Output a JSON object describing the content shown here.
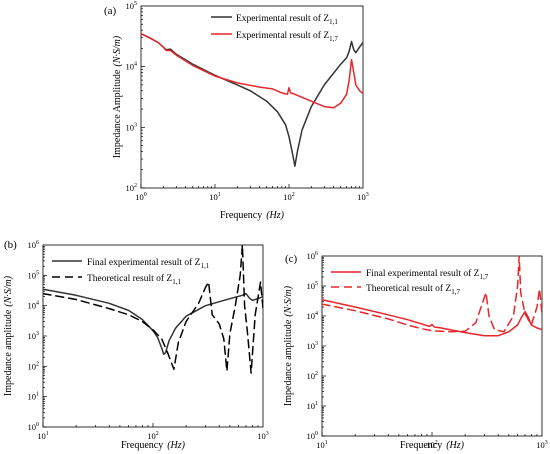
{
  "colors": {
    "black": "#333333",
    "red": "#e8262a",
    "axis": "#000000"
  },
  "chart_data": [
    {
      "type": "line",
      "panel_label": "(a)",
      "xlabel": "Frequency",
      "xlabel_unit": "(Hz)",
      "ylabel": "Impedance Amplitude",
      "ylabel_unit": "(N·S/m)",
      "xscale": "log",
      "yscale": "log",
      "xlim": [
        1,
        1000
      ],
      "ylim": [
        100,
        100000
      ],
      "x_ticks": [
        {
          "v": 1,
          "m": "10",
          "e": "0"
        },
        {
          "v": 10,
          "m": "10",
          "e": "1"
        },
        {
          "v": 100,
          "m": "10",
          "e": "2"
        },
        {
          "v": 1000,
          "m": "10",
          "e": "3"
        }
      ],
      "y_ticks": [
        {
          "v": 100,
          "m": "10",
          "e": "2"
        },
        {
          "v": 1000,
          "m": "10",
          "e": "3"
        },
        {
          "v": 10000,
          "m": "10",
          "e": "4"
        },
        {
          "v": 100000,
          "m": "10",
          "e": "5"
        }
      ],
      "legend_position": "top-right",
      "series": [
        {
          "name": "Experimental result of Z",
          "sub": "1,1",
          "color": "#333333",
          "dash": "",
          "points": [
            [
              1,
              35000
            ],
            [
              1.3,
              30000
            ],
            [
              1.7,
              25000
            ],
            [
              2,
              21000
            ],
            [
              2.2,
              19000
            ],
            [
              2.5,
              19500
            ],
            [
              3,
              16000
            ],
            [
              5,
              11000
            ],
            [
              10,
              7200
            ],
            [
              20,
              5000
            ],
            [
              30,
              4000
            ],
            [
              50,
              2700
            ],
            [
              70,
              1800
            ],
            [
              90,
              1100
            ],
            [
              100,
              700
            ],
            [
              110,
              400
            ],
            [
              120,
              230
            ],
            [
              130,
              400
            ],
            [
              150,
              900
            ],
            [
              200,
              2200
            ],
            [
              300,
              5000
            ],
            [
              500,
              11000
            ],
            [
              600,
              14000
            ],
            [
              650,
              18000
            ],
            [
              700,
              26000
            ],
            [
              750,
              19000
            ],
            [
              800,
              17000
            ],
            [
              900,
              21000
            ],
            [
              1000,
              25000
            ]
          ]
        },
        {
          "name": "Experimental result of Z",
          "sub": "1,7",
          "color": "#e8262a",
          "dash": "",
          "points": [
            [
              1,
              35000
            ],
            [
              1.3,
              30000
            ],
            [
              1.7,
              25000
            ],
            [
              2,
              21000
            ],
            [
              2.2,
              18500
            ],
            [
              2.5,
              18500
            ],
            [
              3,
              15500
            ],
            [
              5,
              10500
            ],
            [
              10,
              7000
            ],
            [
              20,
              5400
            ],
            [
              40,
              4600
            ],
            [
              60,
              4300
            ],
            [
              80,
              3700
            ],
            [
              95,
              3500
            ],
            [
              100,
              4500
            ],
            [
              105,
              3700
            ],
            [
              120,
              3500
            ],
            [
              200,
              2700
            ],
            [
              300,
              2200
            ],
            [
              400,
              2100
            ],
            [
              500,
              2500
            ],
            [
              600,
              3500
            ],
            [
              650,
              6000
            ],
            [
              700,
              13000
            ],
            [
              750,
              8000
            ],
            [
              800,
              5000
            ],
            [
              900,
              4000
            ],
            [
              1000,
              3600
            ]
          ]
        }
      ]
    },
    {
      "type": "line",
      "panel_label": "(b)",
      "xlabel": "Frequency",
      "xlabel_unit": "(Hz)",
      "ylabel": "Impedance amplitude",
      "ylabel_unit": "(N·S/m)",
      "xscale": "log",
      "yscale": "log",
      "xlim": [
        10,
        1000
      ],
      "ylim": [
        1,
        1000000
      ],
      "x_ticks": [
        {
          "v": 10,
          "m": "10",
          "e": "1"
        },
        {
          "v": 100,
          "m": "10",
          "e": "2"
        },
        {
          "v": 1000,
          "m": "10",
          "e": "3"
        }
      ],
      "y_ticks": [
        {
          "v": 1,
          "m": "10",
          "e": "0"
        },
        {
          "v": 10,
          "m": "10",
          "e": "1"
        },
        {
          "v": 100,
          "m": "10",
          "e": "2"
        },
        {
          "v": 1000,
          "m": "10",
          "e": "3"
        },
        {
          "v": 10000,
          "m": "10",
          "e": "4"
        },
        {
          "v": 100000,
          "m": "10",
          "e": "5"
        },
        {
          "v": 1000000,
          "m": "10",
          "e": "6"
        }
      ],
      "legend_position": "top-left",
      "series": [
        {
          "name": "Final experimental result of Z",
          "sub": "1,1",
          "color": "#333333",
          "dash": "",
          "points": [
            [
              10,
              35000
            ],
            [
              20,
              22000
            ],
            [
              40,
              12000
            ],
            [
              60,
              7000
            ],
            [
              80,
              3500
            ],
            [
              100,
              1500
            ],
            [
              110,
              900
            ],
            [
              120,
              400
            ],
            [
              125,
              250
            ],
            [
              130,
              280
            ],
            [
              140,
              700
            ],
            [
              160,
              1800
            ],
            [
              200,
              4500
            ],
            [
              300,
              10000
            ],
            [
              500,
              17000
            ],
            [
              650,
              22000
            ],
            [
              700,
              25000
            ],
            [
              750,
              18000
            ],
            [
              800,
              15000
            ],
            [
              900,
              17000
            ],
            [
              1000,
              20000
            ]
          ]
        },
        {
          "name": "Theoretical result of Z",
          "sub": "1,1",
          "color": "#000000",
          "dash": "8,5",
          "points": [
            [
              10,
              25000
            ],
            [
              20,
              16000
            ],
            [
              40,
              8000
            ],
            [
              60,
              5000
            ],
            [
              80,
              3000
            ],
            [
              100,
              1600
            ],
            [
              120,
              800
            ],
            [
              135,
              300
            ],
            [
              145,
              150
            ],
            [
              155,
              80
            ],
            [
              170,
              600
            ],
            [
              200,
              3000
            ],
            [
              260,
              12000
            ],
            [
              300,
              40000
            ],
            [
              320,
              60000
            ],
            [
              345,
              5000
            ],
            [
              400,
              2500
            ],
            [
              440,
              800
            ],
            [
              470,
              70
            ],
            [
              500,
              1200
            ],
            [
              560,
              10000
            ],
            [
              620,
              100000
            ],
            [
              650,
              1000000
            ],
            [
              680,
              10000
            ],
            [
              720,
              1500
            ],
            [
              780,
              60
            ],
            [
              850,
              5000
            ],
            [
              950,
              60000
            ],
            [
              1000,
              8000
            ]
          ]
        }
      ]
    },
    {
      "type": "line",
      "panel_label": "(c)",
      "xlabel": "Frequency",
      "xlabel_unit": "(Hz)",
      "ylabel": "Impedance amplitude",
      "ylabel_unit": "(N·S/m)",
      "xscale": "log",
      "yscale": "log",
      "xlim": [
        10,
        1000
      ],
      "ylim": [
        1,
        1000000
      ],
      "x_ticks": [
        {
          "v": 10,
          "m": "10",
          "e": "1"
        },
        {
          "v": 100,
          "m": "10",
          "e": "2"
        },
        {
          "v": 1000,
          "m": "10",
          "e": "3"
        }
      ],
      "y_ticks": [
        {
          "v": 1,
          "m": "10",
          "e": "0"
        },
        {
          "v": 10,
          "m": "10",
          "e": "1"
        },
        {
          "v": 100,
          "m": "10",
          "e": "2"
        },
        {
          "v": 1000,
          "m": "10",
          "e": "3"
        },
        {
          "v": 10000,
          "m": "10",
          "e": "4"
        },
        {
          "v": 100000,
          "m": "10",
          "e": "5"
        },
        {
          "v": 1000000,
          "m": "10",
          "e": "6"
        }
      ],
      "legend_position": "top-left",
      "series": [
        {
          "name": "Final experimental result of Z",
          "sub": "1,7",
          "color": "#e8262a",
          "dash": "",
          "points": [
            [
              10,
              35000
            ],
            [
              20,
              20000
            ],
            [
              40,
              11000
            ],
            [
              60,
              7500
            ],
            [
              80,
              5500
            ],
            [
              95,
              4500
            ],
            [
              100,
              5200
            ],
            [
              105,
              4300
            ],
            [
              120,
              4000
            ],
            [
              200,
              2800
            ],
            [
              300,
              2200
            ],
            [
              400,
              2200
            ],
            [
              500,
              3000
            ],
            [
              600,
              5000
            ],
            [
              650,
              9000
            ],
            [
              700,
              14000
            ],
            [
              750,
              9000
            ],
            [
              800,
              5000
            ],
            [
              900,
              4000
            ],
            [
              1000,
              3500
            ]
          ]
        },
        {
          "name": "Theoretical result of Z",
          "sub": "1,7",
          "color": "#e8262a",
          "dash": "8,5",
          "points": [
            [
              10,
              25000
            ],
            [
              20,
              15000
            ],
            [
              40,
              8000
            ],
            [
              60,
              5000
            ],
            [
              80,
              3800
            ],
            [
              100,
              3200
            ],
            [
              150,
              3000
            ],
            [
              200,
              3100
            ],
            [
              250,
              6000
            ],
            [
              290,
              30000
            ],
            [
              310,
              60000
            ],
            [
              330,
              10000
            ],
            [
              370,
              3500
            ],
            [
              450,
              3000
            ],
            [
              550,
              10000
            ],
            [
              600,
              100000
            ],
            [
              620,
              1000000
            ],
            [
              640,
              60000
            ],
            [
              700,
              12000
            ],
            [
              800,
              5000
            ],
            [
              900,
              20000
            ],
            [
              950,
              80000
            ],
            [
              1000,
              12000
            ]
          ]
        }
      ]
    }
  ]
}
